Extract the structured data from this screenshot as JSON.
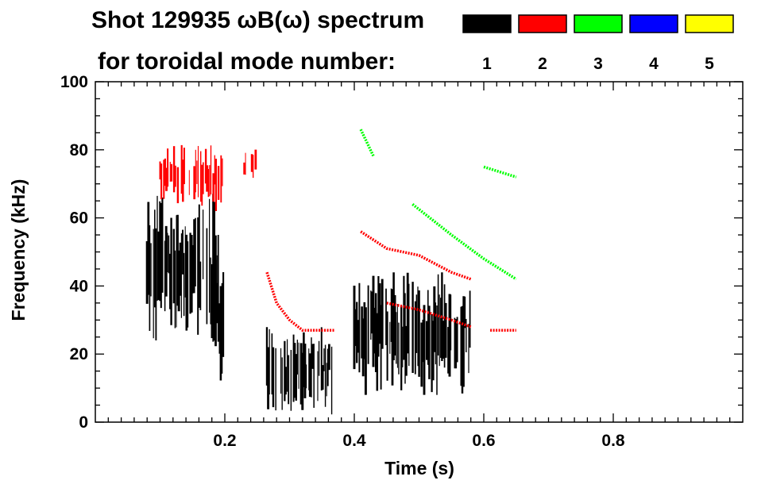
{
  "chart_data": {
    "type": "spectrogram",
    "title_line1": "Shot 129935 ωB(ω) spectrum",
    "title_line2": "for toroidal mode number:",
    "xlabel": "Time (s)",
    "ylabel": "Frequency (kHz)",
    "xlim": [
      0.0,
      1.0
    ],
    "ylim": [
      0,
      100
    ],
    "x_ticks": [
      {
        "value": 0.2,
        "label": "0.2"
      },
      {
        "value": 0.4,
        "label": "0.4"
      },
      {
        "value": 0.6,
        "label": "0.6"
      },
      {
        "value": 0.8,
        "label": "0.8"
      }
    ],
    "y_ticks": [
      {
        "value": 0,
        "label": "0"
      },
      {
        "value": 20,
        "label": "20"
      },
      {
        "value": 40,
        "label": "40"
      },
      {
        "value": 60,
        "label": "60"
      },
      {
        "value": 80,
        "label": "80"
      },
      {
        "value": 100,
        "label": "100"
      }
    ],
    "legend": [
      {
        "label": "1",
        "color": "#000000"
      },
      {
        "label": "2",
        "color": "#ff0000"
      },
      {
        "label": "3",
        "color": "#00ff00"
      },
      {
        "label": "4",
        "color": "#0000ff"
      },
      {
        "label": "5",
        "color": "#ffff00"
      }
    ],
    "series": [
      {
        "mode": "1",
        "color": "#000000",
        "bands": [
          {
            "t0": 0.08,
            "t1": 0.19,
            "f0": 24,
            "f1": 68
          },
          {
            "t0": 0.18,
            "t1": 0.2,
            "f0": 12,
            "f1": 55
          },
          {
            "t0": 0.265,
            "t1": 0.37,
            "f0": 2,
            "f1": 28
          },
          {
            "t0": 0.4,
            "t1": 0.58,
            "f0": 8,
            "f1": 44
          }
        ]
      },
      {
        "mode": "2",
        "color": "#ff0000",
        "bands": [
          {
            "t0": 0.1,
            "t1": 0.2,
            "f0": 62,
            "f1": 82
          },
          {
            "t0": 0.23,
            "t1": 0.25,
            "f0": 70,
            "f1": 81
          }
        ],
        "lines": [
          [
            [
              0.265,
              44
            ],
            [
              0.28,
              35
            ],
            [
              0.3,
              30
            ],
            [
              0.32,
              27
            ],
            [
              0.37,
              27
            ]
          ],
          [
            [
              0.41,
              56
            ],
            [
              0.45,
              51
            ],
            [
              0.5,
              49
            ],
            [
              0.55,
              44
            ],
            [
              0.58,
              42
            ]
          ],
          [
            [
              0.45,
              35
            ],
            [
              0.5,
              33
            ],
            [
              0.55,
              30
            ],
            [
              0.58,
              28
            ]
          ],
          [
            [
              0.61,
              27
            ],
            [
              0.65,
              27
            ]
          ]
        ]
      },
      {
        "mode": "3",
        "color": "#00ff00",
        "lines": [
          [
            [
              0.41,
              86
            ],
            [
              0.43,
              78
            ]
          ],
          [
            [
              0.49,
              64
            ],
            [
              0.55,
              55
            ],
            [
              0.6,
              48
            ],
            [
              0.65,
              42
            ]
          ],
          [
            [
              0.6,
              75
            ],
            [
              0.65,
              72
            ]
          ]
        ]
      },
      {
        "mode": "4",
        "color": "#0000ff",
        "lines": []
      },
      {
        "mode": "5",
        "color": "#ffff00",
        "lines": []
      }
    ]
  }
}
